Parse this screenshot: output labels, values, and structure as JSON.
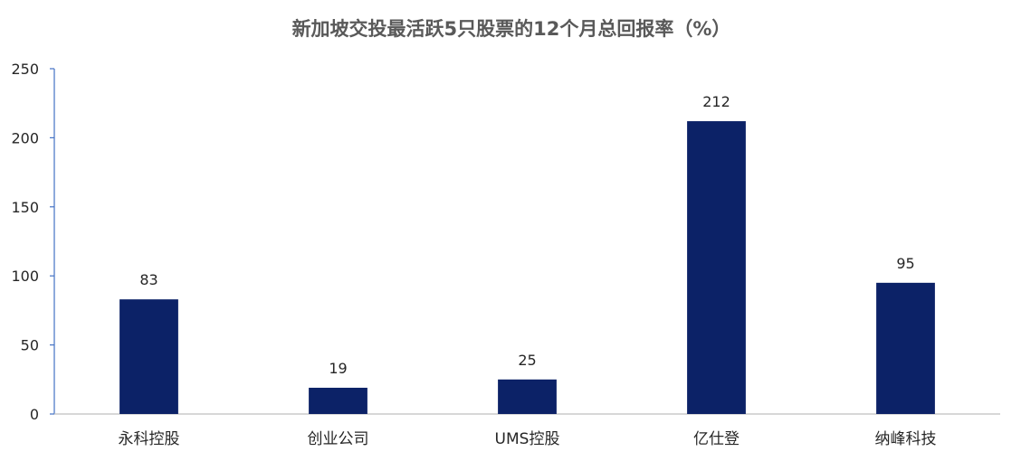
{
  "chart_data": {
    "type": "bar",
    "title": "新加坡交投最活跃5只股票的12个月总回报率（%）",
    "categories": [
      "永科控股",
      "创业公司",
      "UMS控股",
      "亿仕登",
      "纳峰科技"
    ],
    "values": [
      83,
      19,
      25,
      212,
      95
    ],
    "data_labels": [
      "83",
      "19",
      "25",
      "212",
      "95"
    ],
    "ylim": [
      0,
      250
    ],
    "yticks": [
      0,
      50,
      100,
      150,
      200,
      250
    ],
    "xlabel": "",
    "ylabel": "",
    "grid": false,
    "legend": "none",
    "colors": {
      "bar": "#0c2267",
      "axis": "#4472c4",
      "xaxis": "#bfbfbf"
    }
  }
}
